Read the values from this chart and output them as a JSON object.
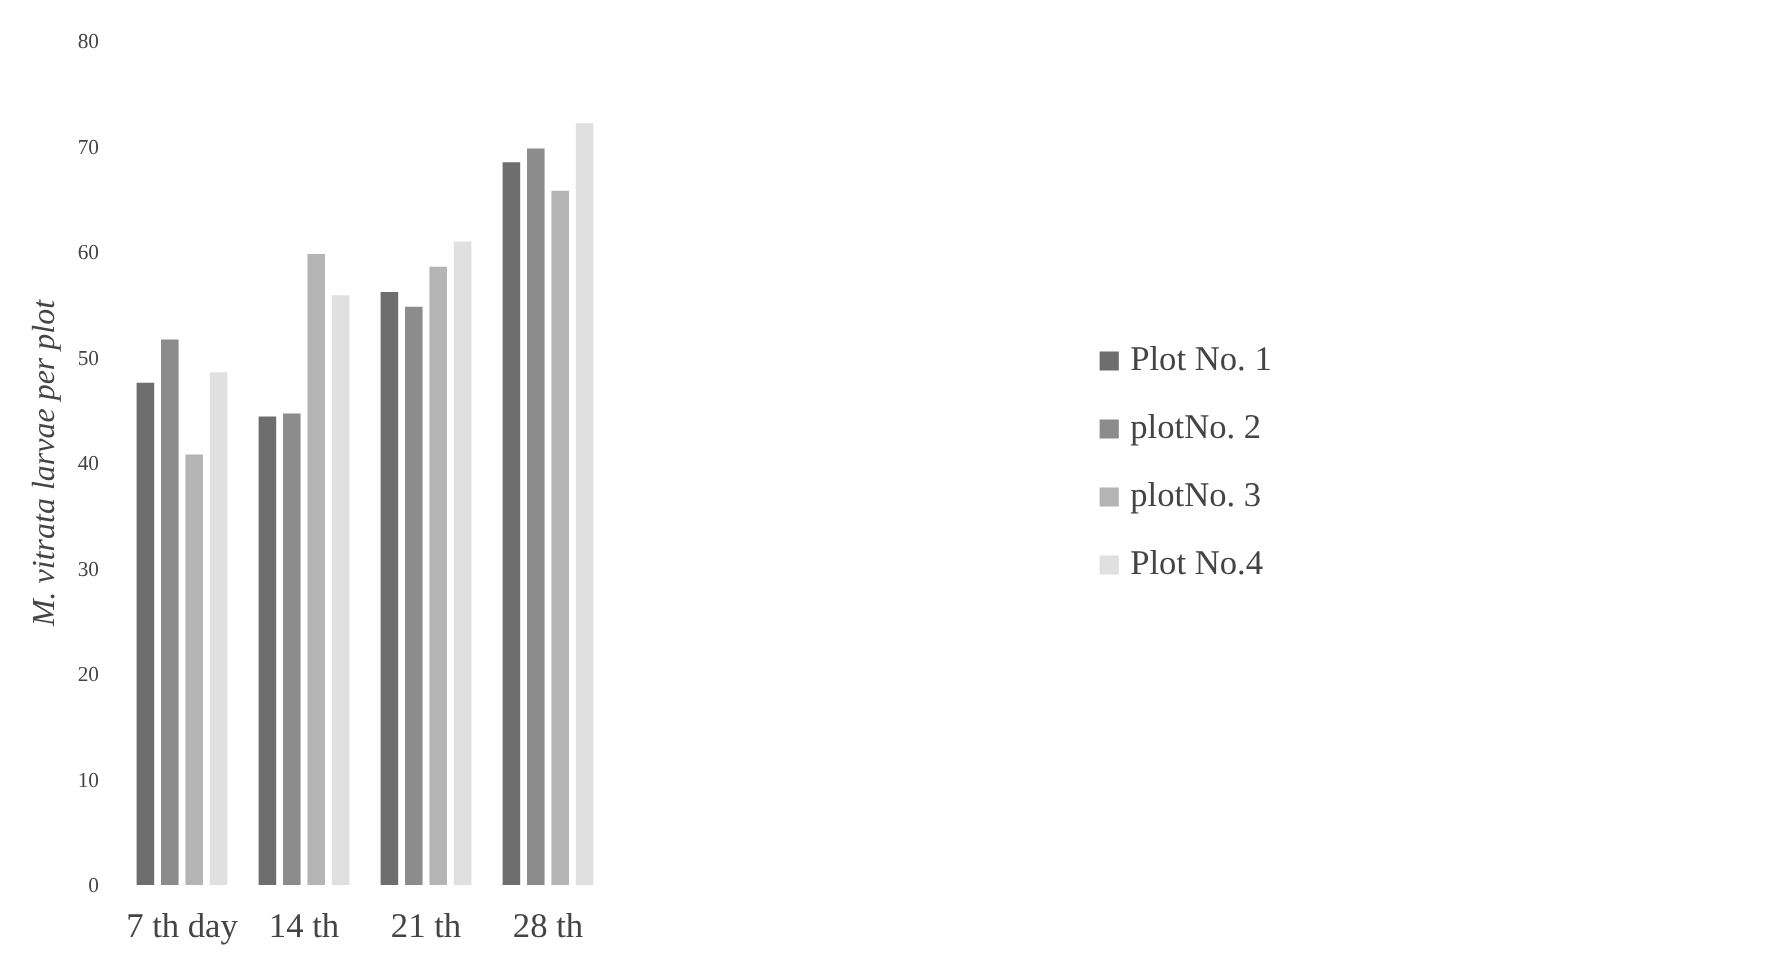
{
  "chart_data": {
    "type": "bar",
    "ylabel": "M. vitrata larvae per plot",
    "categories": [
      "7 th day",
      "14 th",
      "21 th",
      "28 th"
    ],
    "series": [
      {
        "name": "Plot No. 1",
        "color": "#6e6e6e",
        "values": [
          47.6,
          44.4,
          56.2,
          68.5
        ]
      },
      {
        "name": "plotNo. 2",
        "color": "#8c8c8c",
        "values": [
          51.7,
          44.7,
          54.8,
          69.8
        ]
      },
      {
        "name": "plotNo. 3",
        "color": "#b4b4b4",
        "values": [
          40.8,
          59.8,
          58.6,
          65.8
        ]
      },
      {
        "name": "Plot No.4",
        "color": "#e0e0e0",
        "values": [
          48.6,
          55.9,
          61.0,
          72.2
        ]
      }
    ],
    "ylim": [
      0,
      80
    ],
    "yticks": [
      0,
      10,
      20,
      30,
      40,
      50,
      60,
      70,
      80
    ],
    "grid": false,
    "legend": "right"
  }
}
